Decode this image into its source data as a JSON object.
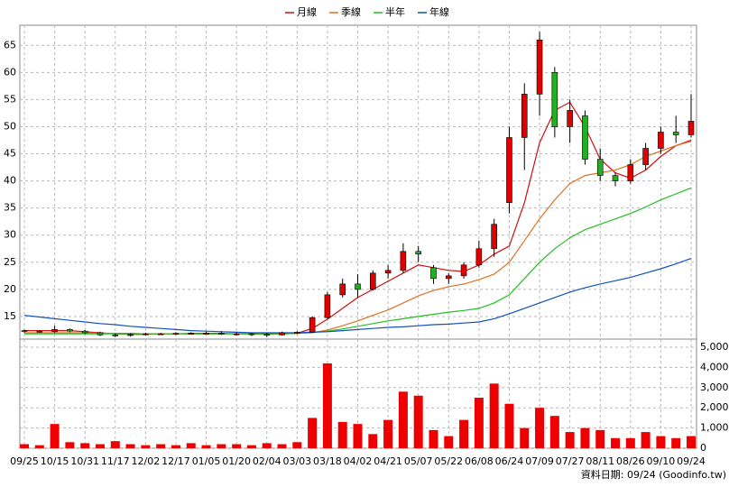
{
  "chart_data": {
    "type": "candlestick",
    "x": [
      "09/25",
      null,
      "10/15",
      null,
      "10/31",
      null,
      "11/17",
      null,
      "12/02",
      null,
      "12/17",
      null,
      "01/05",
      null,
      "01/20",
      null,
      "02/04",
      null,
      "03/03",
      null,
      "03/18",
      null,
      "04/02",
      null,
      "04/21",
      null,
      "05/07",
      null,
      "05/22",
      null,
      "06/08",
      null,
      "06/24",
      null,
      "07/09",
      null,
      "07/27",
      null,
      "08/11",
      null,
      "08/26",
      null,
      "09/10",
      null,
      "09/24"
    ],
    "open": [
      12.4,
      12.3,
      12.2,
      12.6,
      12.3,
      12.0,
      11.6,
      11.5,
      11.7,
      11.8,
      11.8,
      11.9,
      11.9,
      11.9,
      11.8,
      11.8,
      11.7,
      11.6,
      12.0,
      12.1,
      14.8,
      19.0,
      21.0,
      20.0,
      23.0,
      23.5,
      27.0,
      24.0,
      22.0,
      22.5,
      24.5,
      27.5,
      36.0,
      48.0,
      56.0,
      60.0,
      50.0,
      52.0,
      44.0,
      41.0,
      40.0,
      43.0,
      46.0,
      49.0,
      48.5
    ],
    "high": [
      12.6,
      12.5,
      13.3,
      12.8,
      12.5,
      12.2,
      11.9,
      11.9,
      12.0,
      12.0,
      12.1,
      12.1,
      12.2,
      12.3,
      12.1,
      12.0,
      12.0,
      12.2,
      12.3,
      15.0,
      19.5,
      22.0,
      22.8,
      23.5,
      24.5,
      28.5,
      28.0,
      24.5,
      23.0,
      25.0,
      29.0,
      33.0,
      50.0,
      58.0,
      67.5,
      61.0,
      55.0,
      53.0,
      46.0,
      41.5,
      44.0,
      47.0,
      50.0,
      52.0,
      56.0
    ],
    "low": [
      12.0,
      12.0,
      12.0,
      12.1,
      11.8,
      11.4,
      11.2,
      11.3,
      11.5,
      11.6,
      11.6,
      11.7,
      11.7,
      11.6,
      11.5,
      11.4,
      11.2,
      11.5,
      11.8,
      12.0,
      14.6,
      18.5,
      18.5,
      19.8,
      22.0,
      23.0,
      25.0,
      21.0,
      21.0,
      22.0,
      24.0,
      26.0,
      34.0,
      42.0,
      52.0,
      48.0,
      47.0,
      43.0,
      40.0,
      39.0,
      39.5,
      42.0,
      45.0,
      47.0,
      48.0
    ],
    "close": [
      12.3,
      12.2,
      12.6,
      12.3,
      12.0,
      11.6,
      11.5,
      11.7,
      11.8,
      11.8,
      11.9,
      11.9,
      11.9,
      11.8,
      11.8,
      11.7,
      11.6,
      12.0,
      12.1,
      14.8,
      19.0,
      21.0,
      20.0,
      23.0,
      23.5,
      27.0,
      26.5,
      22.0,
      22.5,
      24.5,
      27.5,
      32.0,
      48.0,
      56.0,
      66.0,
      50.0,
      53.0,
      44.0,
      41.0,
      40.0,
      43.0,
      46.0,
      49.0,
      48.5,
      51.0
    ],
    "up_color": "#e00000",
    "down_color": "#20b020",
    "ma_series": [
      {
        "name": "月線",
        "color": "#d01010",
        "values": [
          12.4,
          12.4,
          12.4,
          12.4,
          12.2,
          12.0,
          11.8,
          11.7,
          11.7,
          11.8,
          11.8,
          11.9,
          11.9,
          11.9,
          11.8,
          11.8,
          11.7,
          11.8,
          11.9,
          12.8,
          14.5,
          16.5,
          18.5,
          20.0,
          21.5,
          23.0,
          24.5,
          24.0,
          23.5,
          23.3,
          24.5,
          26.5,
          28.0,
          36.0,
          47.0,
          53.0,
          54.5,
          50.0,
          44.0,
          41.5,
          40.5,
          42.0,
          44.5,
          46.5,
          47.5
        ]
      },
      {
        "name": "季線",
        "color": "#e07020",
        "values": [
          12.0,
          12.0,
          12.0,
          12.0,
          12.0,
          11.9,
          11.9,
          11.9,
          11.8,
          11.8,
          11.8,
          11.8,
          11.8,
          11.8,
          11.8,
          11.8,
          11.8,
          11.8,
          11.9,
          12.0,
          12.5,
          13.3,
          14.2,
          15.2,
          16.2,
          17.5,
          18.8,
          19.8,
          20.5,
          21.0,
          21.8,
          22.8,
          25.0,
          29.0,
          33.0,
          36.5,
          39.5,
          41.0,
          41.5,
          42.0,
          43.0,
          44.5,
          45.5,
          46.5,
          47.3
        ]
      },
      {
        "name": "半年",
        "color": "#20c020",
        "values": [
          11.8,
          11.8,
          11.8,
          11.8,
          11.8,
          11.8,
          11.8,
          11.8,
          11.8,
          11.8,
          11.8,
          11.8,
          11.8,
          11.8,
          11.8,
          11.8,
          11.8,
          11.8,
          11.9,
          12.1,
          12.3,
          12.7,
          13.2,
          13.7,
          14.2,
          14.6,
          15.0,
          15.4,
          15.8,
          16.1,
          16.5,
          17.5,
          19.0,
          22.0,
          25.0,
          27.5,
          29.5,
          31.0,
          32.0,
          33.0,
          34.0,
          35.2,
          36.5,
          37.6,
          38.7
        ]
      },
      {
        "name": "年線",
        "color": "#1050c0",
        "values": [
          15.2,
          14.9,
          14.6,
          14.3,
          14.0,
          13.7,
          13.5,
          13.2,
          13.0,
          12.8,
          12.6,
          12.4,
          12.3,
          12.2,
          12.1,
          12.0,
          12.0,
          12.0,
          12.0,
          12.1,
          12.2,
          12.4,
          12.6,
          12.8,
          13.0,
          13.1,
          13.3,
          13.5,
          13.6,
          13.8,
          14.0,
          14.6,
          15.5,
          16.5,
          17.5,
          18.5,
          19.5,
          20.3,
          21.0,
          21.6,
          22.2,
          23.0,
          23.8,
          24.7,
          25.7
        ]
      }
    ],
    "ylim": [
      11,
      68.7
    ],
    "yticks": [
      15,
      20,
      25,
      30,
      35,
      40,
      45,
      50,
      55,
      60,
      65
    ],
    "volume": {
      "color": "#ee0000",
      "values": [
        200,
        150,
        1200,
        300,
        250,
        200,
        350,
        200,
        150,
        200,
        150,
        250,
        150,
        200,
        200,
        150,
        250,
        200,
        300,
        1500,
        4200,
        1300,
        1200,
        700,
        1400,
        2800,
        2600,
        900,
        600,
        1400,
        2500,
        3200,
        2200,
        1000,
        2000,
        1600,
        800,
        1000,
        900,
        500,
        500,
        800,
        600,
        500,
        600
      ],
      "ylim": [
        0,
        5312
      ],
      "yticks": [
        0,
        {
          "value": 1000,
          "label": "1,000"
        },
        {
          "value": 2000,
          "label": "2,000"
        },
        {
          "value": 3000,
          "label": "3,000"
        },
        {
          "value": 4000,
          "label": "4,000"
        },
        {
          "value": 5000,
          "label": "5,000"
        }
      ]
    },
    "grid": true,
    "source_note": "資料日期: 09/24 (Goodinfo.tw)"
  }
}
